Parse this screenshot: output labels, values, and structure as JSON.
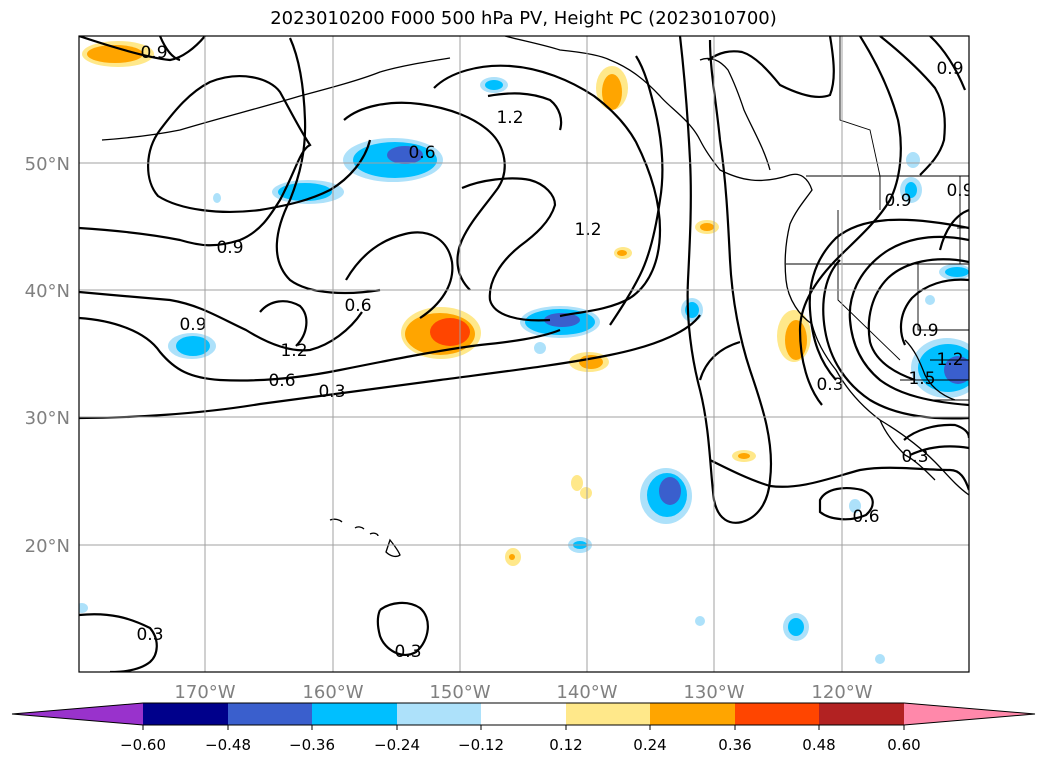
{
  "title": "2023010200 F000 500 hPa PV, Height PC (2023010700)",
  "lat_labels": [
    "50°N",
    "40°N",
    "30°N",
    "20°N"
  ],
  "lon_labels": [
    "170°W",
    "160°W",
    "150°W",
    "140°W",
    "130°W",
    "120°W"
  ],
  "colorbar": {
    "ticks": [
      "−0.60",
      "−0.48",
      "−0.36",
      "−0.24",
      "−0.12",
      "0.12",
      "0.24",
      "0.36",
      "0.48",
      "0.60"
    ],
    "colors": [
      "#9932CC",
      "#00008B",
      "#3A5FCD",
      "#00BFFF",
      "#ADE1FA",
      "#FFFFFF",
      "#FFE88A",
      "#FFA500",
      "#FF4500",
      "#B22222",
      "#FF88AA"
    ]
  },
  "contour_labels": [
    "0.9",
    "1.2",
    "0.6",
    "0.9",
    "1.2",
    "0.9",
    "0.6",
    "0.9",
    "1.2",
    "0.6",
    "0.3",
    "0.3",
    "0.3",
    "0.9",
    "0.9",
    "0.9",
    "0.3",
    "0.3",
    "0.6",
    "1.2",
    "1.5"
  ],
  "map": {
    "lat_range": [
      10,
      60
    ],
    "lon_range": [
      -180,
      -110
    ]
  }
}
